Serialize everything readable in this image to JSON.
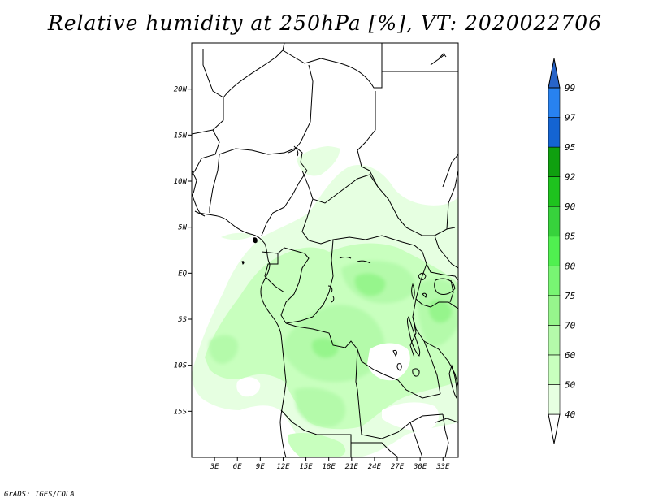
{
  "title": "Relative humidity at 250hPa [%], VT: 2020022706",
  "footer": "GrADS: IGES/COLA",
  "map": {
    "lon_range": [
      0,
      35
    ],
    "lat_range": [
      -20,
      25
    ],
    "lat_ticks": [
      {
        "value": 20,
        "label": "20N"
      },
      {
        "value": 15,
        "label": "15N"
      },
      {
        "value": 10,
        "label": "10N"
      },
      {
        "value": 5,
        "label": "5N"
      },
      {
        "value": 0,
        "label": "EQ"
      },
      {
        "value": -5,
        "label": "5S"
      },
      {
        "value": -10,
        "label": "10S"
      },
      {
        "value": -15,
        "label": "15S"
      }
    ],
    "lon_ticks": [
      {
        "value": 3,
        "label": "3E"
      },
      {
        "value": 6,
        "label": "6E"
      },
      {
        "value": 9,
        "label": "9E"
      },
      {
        "value": 12,
        "label": "12E"
      },
      {
        "value": 15,
        "label": "15E"
      },
      {
        "value": 18,
        "label": "18E"
      },
      {
        "value": 21,
        "label": "21E"
      },
      {
        "value": 24,
        "label": "24E"
      },
      {
        "value": 27,
        "label": "27E"
      },
      {
        "value": 30,
        "label": "30E"
      },
      {
        "value": 33,
        "label": "33E"
      }
    ]
  },
  "colorbar": {
    "levels": [
      "40",
      "50",
      "60",
      "70",
      "75",
      "80",
      "85",
      "90",
      "92",
      "95",
      "97",
      "99"
    ],
    "colors": [
      "#e6ffe1",
      "#c8ffbe",
      "#b4faaa",
      "#96f58c",
      "#78f573",
      "#50f050",
      "#37d23c",
      "#1ec31e",
      "#0fa00f",
      "#1464d2",
      "#2882f0",
      "#50a5f5",
      "#2864c8"
    ]
  },
  "colors": {
    "rh_light": "#e6ffe1",
    "rh_mid": "#c8ffbe",
    "rh_dark": "#b4faaa",
    "rh_darker": "#96f58c",
    "border": "#000000"
  }
}
